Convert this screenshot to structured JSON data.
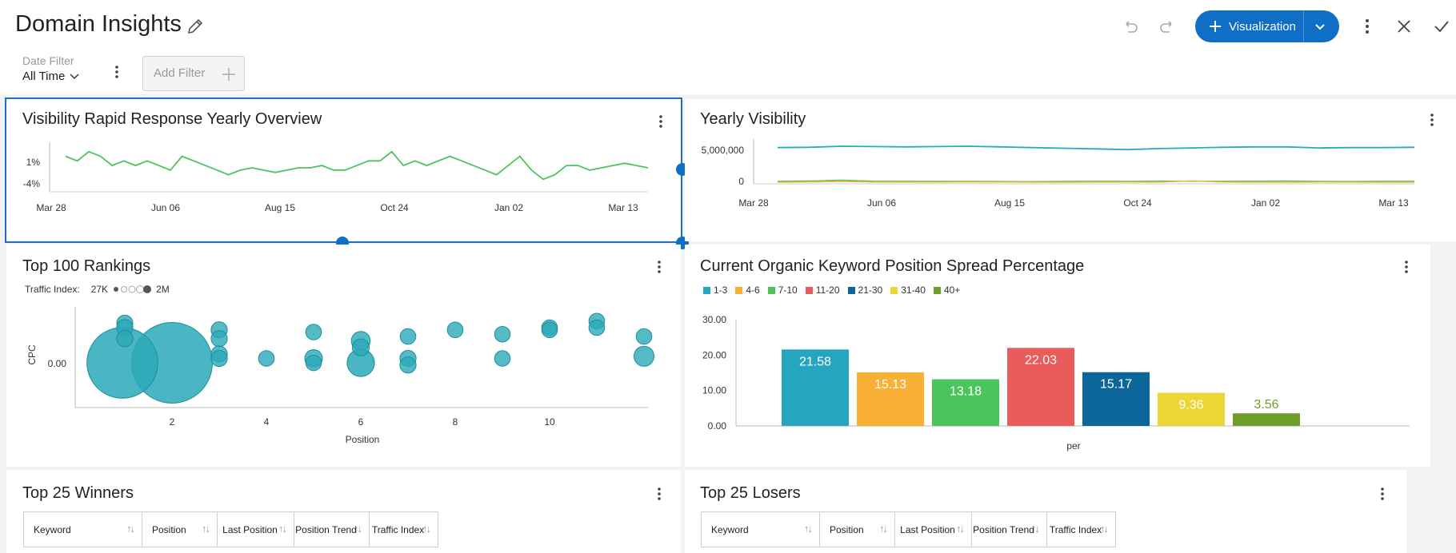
{
  "header": {
    "title": "Domain Insights",
    "visualization_label": "Visualization",
    "date_filter_label": "Date Filter",
    "date_filter_value": "All Time",
    "add_filter_label": "Add Filter"
  },
  "colors": {
    "accent": "#0f6fc6",
    "line_green": "#4cc45c",
    "line_teal": "#2aa9c4",
    "bubble": "#2aa9b8"
  },
  "cards": {
    "visibility_rapid": {
      "title": "Visibility Rapid Response Yearly Overview",
      "chart_data": {
        "type": "line",
        "x_ticks": [
          "Mar 28",
          "Jun 06",
          "Aug 15",
          "Oct 24",
          "Jan 02",
          "Mar 13"
        ],
        "y_ticks": [
          "1%",
          "-4%"
        ],
        "series": [
          {
            "values": [
              3,
              2,
              4,
              3,
              1,
              2,
              1,
              2,
              1,
              0,
              3,
              2,
              1,
              0,
              -1,
              0,
              0.5,
              0,
              -0.5,
              0,
              0.5,
              0.5,
              1,
              0,
              0,
              1,
              2,
              2,
              4,
              1,
              2,
              1,
              2,
              3,
              2,
              1,
              0,
              -1,
              1,
              3,
              0,
              -2,
              -1,
              1,
              1,
              0,
              0.5,
              1,
              1.5,
              1,
              0.5
            ]
          }
        ]
      }
    },
    "yearly_visibility": {
      "title": "Yearly Visibility",
      "chart_data": {
        "type": "line",
        "x_ticks": [
          "Mar 28",
          "Jun 06",
          "Aug 15",
          "Oct 24",
          "Jan 02",
          "Mar 13"
        ],
        "y_ticks": [
          "5,000,000",
          "0"
        ],
        "series": [
          {
            "values": [
              5200000,
              5250000,
              5400000,
              5350000,
              5300000,
              5350000,
              5400000,
              5300000,
              5200000,
              5100000,
              5000000,
              4900000,
              5050000,
              5150000,
              5250000,
              5300000,
              5300000,
              5150000,
              5200000,
              5200000,
              5250000
            ]
          },
          {
            "values": [
              150000,
              180000,
              300000,
              160000,
              140000,
              120000,
              130000,
              110000,
              100000,
              120000,
              150000,
              130000,
              170000,
              150000,
              140000,
              160000,
              180000,
              120000,
              110000,
              140000,
              150000
            ]
          },
          {
            "values": [
              0,
              40000,
              120000,
              30000,
              20000,
              10000,
              40000,
              20000,
              10000,
              0,
              30000,
              20000,
              10000,
              200000,
              30000,
              10000,
              0,
              20000,
              10000,
              0,
              10000
            ]
          }
        ]
      }
    },
    "top100": {
      "title": "Top 100 Rankings",
      "legend_prefix": "Traffic Index:",
      "legend_min": "27K",
      "legend_max": "2M",
      "chart_data": {
        "type": "scatter",
        "xlabel": "Position",
        "ylabel": "CPC",
        "x_ticks": [
          "2",
          "4",
          "6",
          "8",
          "10"
        ],
        "y_ticks": [
          "0.00"
        ],
        "points": [
          {
            "x": 1,
            "y": 0.0,
            "size": 1500000
          },
          {
            "x": 2,
            "y": 0.0,
            "size": 2000000
          },
          {
            "x": 1,
            "y": 0.9,
            "size": 30000
          },
          {
            "x": 1,
            "y": 0.8,
            "size": 30000
          },
          {
            "x": 1,
            "y": 0.55,
            "size": 30000
          },
          {
            "x": 3,
            "y": 0.75,
            "size": 30000
          },
          {
            "x": 3,
            "y": 0.55,
            "size": 30000
          },
          {
            "x": 3,
            "y": 0.2,
            "size": 30000
          },
          {
            "x": 3,
            "y": 0.1,
            "size": 30000
          },
          {
            "x": 4,
            "y": 0.1,
            "size": 27000
          },
          {
            "x": 5,
            "y": 0.7,
            "size": 27000
          },
          {
            "x": 5,
            "y": 0.1,
            "size": 40000
          },
          {
            "x": 5,
            "y": 0.0,
            "size": 27000
          },
          {
            "x": 6,
            "y": 0.5,
            "size": 50000
          },
          {
            "x": 6,
            "y": 0.35,
            "size": 35000
          },
          {
            "x": 6,
            "y": 0.0,
            "size": 150000
          },
          {
            "x": 7,
            "y": 0.6,
            "size": 27000
          },
          {
            "x": 7,
            "y": 0.1,
            "size": 30000
          },
          {
            "x": 7,
            "y": -0.05,
            "size": 30000
          },
          {
            "x": 8,
            "y": 0.75,
            "size": 27000
          },
          {
            "x": 9,
            "y": 0.65,
            "size": 27000
          },
          {
            "x": 9,
            "y": 0.1,
            "size": 27000
          },
          {
            "x": 10,
            "y": 0.8,
            "size": 27000
          },
          {
            "x": 10,
            "y": 0.75,
            "size": 27000
          },
          {
            "x": 11,
            "y": 0.95,
            "size": 27000
          },
          {
            "x": 11,
            "y": 0.8,
            "size": 27000
          },
          {
            "x": 12,
            "y": 0.6,
            "size": 27000
          },
          {
            "x": 12,
            "y": 0.15,
            "size": 60000
          }
        ]
      }
    },
    "spread": {
      "title": "Current Organic Keyword Position Spread Percentage",
      "chart_data": {
        "type": "bar",
        "xlabel": "per",
        "ylim": [
          0,
          30
        ],
        "y_ticks": [
          "30.00",
          "20.00",
          "10.00",
          "0.00"
        ],
        "series": [
          {
            "name": "1-3",
            "value": 21.58,
            "color": "#26a5c1"
          },
          {
            "name": "4-6",
            "value": 15.13,
            "color": "#f8b135"
          },
          {
            "name": "7-10",
            "value": 13.18,
            "color": "#4cc45c"
          },
          {
            "name": "11-20",
            "value": 22.03,
            "color": "#ea5b5b"
          },
          {
            "name": "21-30",
            "value": 15.17,
            "color": "#0c6699"
          },
          {
            "name": "31-40",
            "value": 9.36,
            "color": "#ecd635"
          },
          {
            "name": "40+",
            "value": 3.56,
            "color": "#6e9e29"
          }
        ]
      }
    },
    "winners": {
      "title": "Top 25 Winners",
      "columns": [
        "Keyword",
        "Position",
        "Last Position",
        "Position Trend",
        "Traffic Index"
      ]
    },
    "losers": {
      "title": "Top 25 Losers",
      "columns": [
        "Keyword",
        "Position",
        "Last Position",
        "Position Trend",
        "Traffic Index"
      ]
    }
  }
}
